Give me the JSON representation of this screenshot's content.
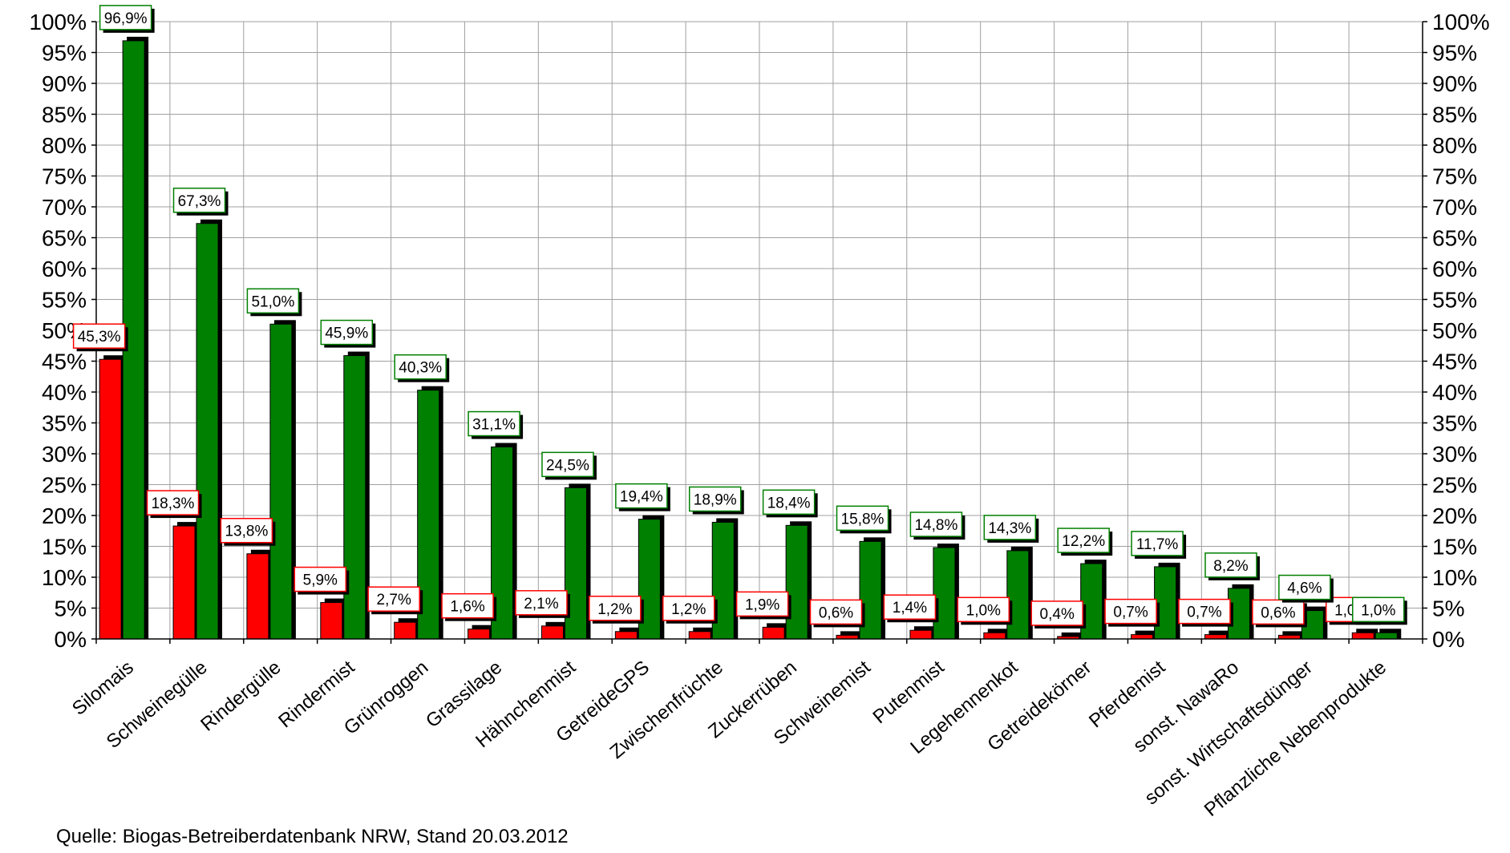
{
  "chart_data": {
    "type": "bar",
    "title": "",
    "xlabel": "",
    "ylabel": "",
    "ylim": [
      0,
      100
    ],
    "y_ticks": [
      "0%",
      "5%",
      "10%",
      "15%",
      "20%",
      "25%",
      "30%",
      "35%",
      "40%",
      "45%",
      "50%",
      "55%",
      "60%",
      "65%",
      "70%",
      "75%",
      "80%",
      "85%",
      "90%",
      "95%",
      "100%"
    ],
    "categories": [
      "Silomais",
      "Schweinegülle",
      "Rindergülle",
      "Rindermist",
      "Grünroggen",
      "Grassilage",
      "Hähnchenmist",
      "GetreideGPS",
      "Zwischenfrüchte",
      "Zuckerrüben",
      "Schweinemist",
      "Putenmist",
      "Legehennenkot",
      "Getreidekörner",
      "Pferdemist",
      "sonst. NawaRo",
      "sonst. Wirtschaftsdünger",
      "Pflanzliche Nebenprodukte"
    ],
    "series": [
      {
        "color": "#ff0000",
        "values": [
          45.3,
          18.3,
          13.8,
          5.9,
          2.7,
          1.6,
          2.1,
          1.2,
          1.2,
          1.9,
          0.6,
          1.4,
          1.0,
          0.4,
          0.7,
          0.7,
          0.6,
          1.0
        ],
        "labels": [
          "45,3%",
          "18,3%",
          "13,8%",
          "5,9%",
          "2,7%",
          "1,6%",
          "2,1%",
          "1,2%",
          "1,2%",
          "1,9%",
          "0,6%",
          "1,4%",
          "1,0%",
          "0,4%",
          "0,7%",
          "0,7%",
          "0,6%",
          "1,0%"
        ]
      },
      {
        "color": "#008000",
        "values": [
          96.9,
          67.3,
          51.0,
          45.9,
          40.3,
          31.1,
          24.5,
          19.4,
          18.9,
          18.4,
          15.8,
          14.8,
          14.3,
          12.2,
          11.7,
          8.2,
          4.6,
          1.0
        ],
        "labels": [
          "96,9%",
          "67,3%",
          "51,0%",
          "45,9%",
          "40,3%",
          "31,1%",
          "24,5%",
          "19,4%",
          "18,9%",
          "18,4%",
          "15,8%",
          "14,8%",
          "14,3%",
          "12,2%",
          "11,7%",
          "8,2%",
          "4,6%",
          "1,0%"
        ]
      }
    ],
    "grid": true,
    "legend": "none",
    "secondary_y_axis": true
  },
  "source_note": "Quelle: Biogas-Betreiberdatenbank NRW, Stand 20.03.2012"
}
